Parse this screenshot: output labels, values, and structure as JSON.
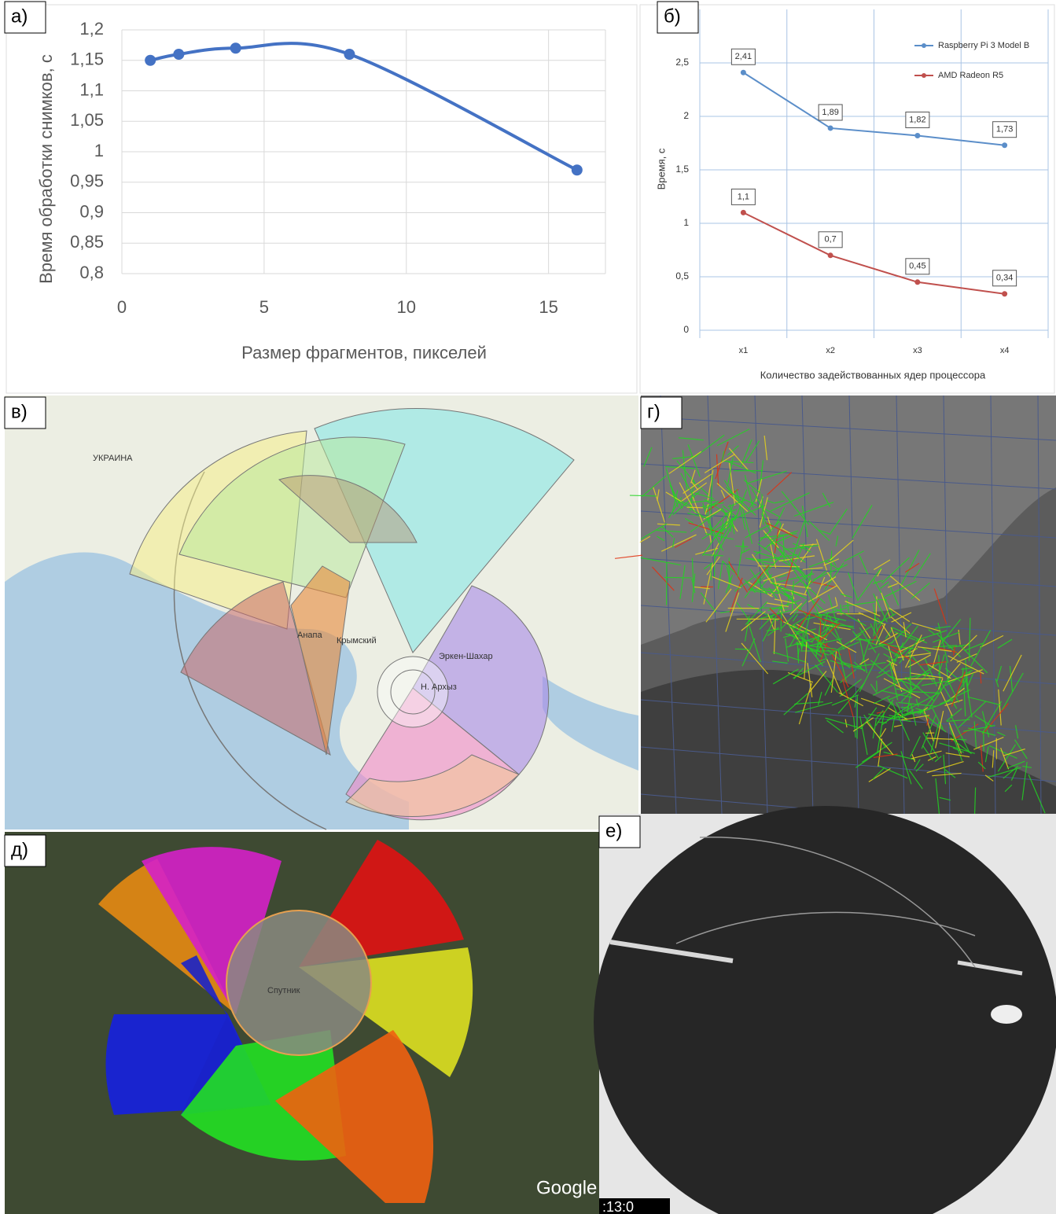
{
  "chart_data": [
    {
      "type": "line",
      "panel": "а)",
      "x": [
        1,
        2,
        4,
        8,
        16
      ],
      "values": [
        1.15,
        1.16,
        1.17,
        1.16,
        0.97
      ],
      "color": "#4472c4",
      "smooth": true,
      "xlim": [
        0,
        17
      ],
      "xticks": [
        0,
        5,
        10,
        15
      ],
      "ylim": [
        0.8,
        1.2
      ],
      "yticks": [
        {
          "value": 0.8,
          "label": "0,8"
        },
        {
          "value": 0.85,
          "label": "0,85"
        },
        {
          "value": 0.9,
          "label": "0,9"
        },
        {
          "value": 0.95,
          "label": "0,95"
        },
        1,
        {
          "value": 1.05,
          "label": "1,05"
        },
        {
          "value": 1.1,
          "label": "1,1"
        },
        {
          "value": 1.15,
          "label": "1,15"
        },
        {
          "value": 1.2,
          "label": "1,2"
        }
      ],
      "grid": true,
      "xlabel": "Размер фрагментов, пикселей",
      "ylabel": "Время обработки снимков, с"
    },
    {
      "type": "line",
      "panel": "б)",
      "categories": [
        "x1",
        "x2",
        "x3",
        "x4"
      ],
      "series": [
        {
          "name": "Raspberry Pi 3 Model B",
          "color": "#5b8ec9",
          "values": [
            2.41,
            1.89,
            1.82,
            1.73
          ],
          "value_labels": [
            "2,41",
            "1,89",
            "1,82",
            "1,73"
          ]
        },
        {
          "name": "AMD Radeon R5",
          "color": "#c0504d",
          "values": [
            1.1,
            0.7,
            0.45,
            0.34
          ],
          "value_labels": [
            "1,1",
            "0,7",
            "0,45",
            "0,34"
          ]
        }
      ],
      "ylim": [
        0,
        3
      ],
      "yticks": [
        0,
        {
          "value": 0.5,
          "label": "0,5"
        },
        1,
        {
          "value": 1.5,
          "label": "1,5"
        },
        2,
        {
          "value": 2.5,
          "label": "2,5"
        }
      ],
      "grid": true,
      "legend": "top-right",
      "xlabel": "Количество задействованных ядер процессора",
      "ylabel": "Время, с"
    }
  ],
  "panels": [
    {
      "label": "в)",
      "texts": [
        "УКРАИНА",
        "Анапа",
        "Крымский",
        "Эркен-Шахар",
        "Н. Архыз"
      ]
    },
    {
      "label": "г)"
    },
    {
      "label": "д)",
      "texts": [
        "Спутник",
        "Google"
      ]
    },
    {
      "label": "е)",
      "texts": [
        ":13:0"
      ]
    }
  ]
}
